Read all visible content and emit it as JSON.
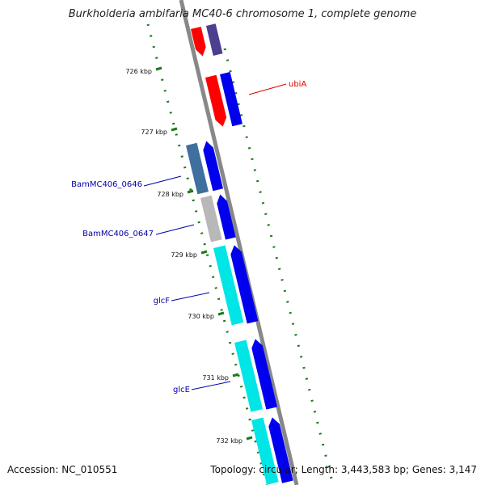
{
  "title": "Burkholderia ambifaria MC40-6 chromosome 1, complete genome",
  "footer": {
    "accession": "Accession: NC_010551",
    "topology": "Topology: circular; Length: 3,443,583 bp; Genes: 3,147"
  },
  "colors": {
    "red": "#ff0000",
    "blue": "#0000ee",
    "slate": "#4b3f8f",
    "steel": "#3f6f9f",
    "grey": "#b8b8b8",
    "cyan": "#00e5e5",
    "tick": "#1a7a1a",
    "label_red": "#dd0000",
    "label_blue": "#0000aa"
  },
  "kbp_ticks": [
    "726 kbp",
    "727 kbp",
    "728 kbp",
    "729 kbp",
    "730 kbp",
    "731 kbp",
    "732 kbp"
  ],
  "gene_labels": {
    "ubiA": "ubiA",
    "bam0646": "BamMC406_0646",
    "bam0647": "BamMC406_0647",
    "glcF": "glcF",
    "glcE": "glcE"
  }
}
